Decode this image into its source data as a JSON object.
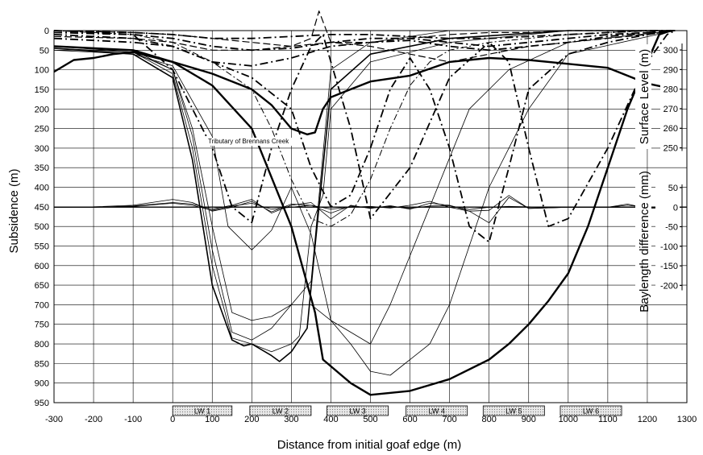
{
  "chart_data": {
    "type": "line",
    "title": "",
    "xlabel": "Distance from initial goaf edge (m)",
    "ylabel": "Subsidence (m)",
    "right_upper_label": "Surface Level (m)",
    "right_lower_label": "Baylength difference (mm)",
    "xlim": [
      -300,
      1300
    ],
    "ylim": [
      0,
      950
    ],
    "x_ticks": [
      -300,
      -200,
      -100,
      0,
      100,
      200,
      300,
      400,
      500,
      600,
      700,
      800,
      900,
      1000,
      1100,
      1200,
      1300
    ],
    "y_ticks": [
      0,
      50,
      100,
      150,
      200,
      250,
      300,
      350,
      400,
      450,
      500,
      550,
      600,
      650,
      700,
      750,
      800,
      850,
      900,
      950
    ],
    "surface_level_ticks": [
      300,
      290,
      280,
      270,
      260,
      250
    ],
    "baylength_ticks": [
      50,
      0,
      -50,
      -100,
      -150,
      -200
    ],
    "grid": true,
    "annotation": "Tributary of Brennans Creek",
    "longwalls": [
      {
        "label": "LW 1",
        "x0": 0,
        "x1": 150
      },
      {
        "label": "LW 2",
        "x0": 195,
        "x1": 350
      },
      {
        "label": "LW 3",
        "x0": 390,
        "x1": 545
      },
      {
        "label": "LW 4",
        "x0": 590,
        "x1": 745
      },
      {
        "label": "LW 5",
        "x0": 785,
        "x1": 940
      },
      {
        "label": "LW 6",
        "x0": 980,
        "x1": 1135
      }
    ],
    "series": [
      {
        "style": "solid-thin",
        "x": [
          -300,
          -100,
          0,
          50,
          100,
          150,
          200,
          250,
          300,
          350,
          400,
          500,
          700,
          1000,
          1270
        ],
        "y": [
          40,
          50,
          100,
          270,
          560,
          770,
          790,
          760,
          700,
          640,
          100,
          30,
          0,
          0,
          0
        ]
      },
      {
        "style": "solid-thin",
        "x": [
          -300,
          -100,
          0,
          50,
          100,
          150,
          200,
          250,
          300,
          320,
          350,
          380,
          400,
          500,
          700,
          1000,
          1270
        ],
        "y": [
          40,
          55,
          110,
          300,
          600,
          785,
          800,
          820,
          800,
          780,
          500,
          420,
          200,
          80,
          30,
          0,
          0
        ]
      },
      {
        "style": "solid-medium",
        "x": [
          -300,
          -100,
          0,
          50,
          100,
          150,
          180,
          200,
          250,
          270,
          300,
          340,
          360,
          400,
          500,
          700,
          1000,
          1270
        ],
        "y": [
          45,
          60,
          120,
          330,
          650,
          790,
          805,
          800,
          830,
          845,
          820,
          760,
          550,
          150,
          60,
          20,
          0,
          0
        ]
      },
      {
        "style": "solid-thin",
        "x": [
          -300,
          -100,
          0,
          50,
          100,
          150,
          200,
          250,
          300,
          350,
          400,
          450,
          500,
          550,
          650,
          750,
          850,
          1000,
          1270
        ],
        "y": [
          45,
          55,
          100,
          250,
          500,
          720,
          740,
          730,
          700,
          700,
          740,
          770,
          800,
          700,
          450,
          200,
          100,
          30,
          0
        ]
      },
      {
        "style": "solid-thin",
        "x": [
          -300,
          -100,
          0,
          100,
          140,
          200,
          250,
          300,
          350,
          400,
          450,
          500,
          550,
          650,
          700,
          800,
          900,
          1000,
          1270
        ],
        "y": [
          50,
          60,
          90,
          270,
          500,
          560,
          510,
          400,
          520,
          740,
          800,
          870,
          880,
          800,
          700,
          400,
          200,
          60,
          0
        ]
      },
      {
        "style": "solid-thick",
        "x": [
          -300,
          -100,
          0,
          100,
          200,
          300,
          360,
          380,
          450,
          500,
          600,
          700,
          800,
          850,
          900,
          950,
          1000,
          1050,
          1100,
          1150,
          1200,
          1230,
          1260
        ],
        "y": [
          40,
          50,
          80,
          140,
          250,
          500,
          720,
          840,
          900,
          930,
          920,
          890,
          840,
          800,
          750,
          690,
          620,
          500,
          350,
          200,
          80,
          10,
          0
        ]
      },
      {
        "style": "solid-thick",
        "x": [
          -300,
          -250,
          -200,
          -150,
          -100,
          0,
          100,
          200,
          250,
          300,
          340,
          360,
          380,
          400,
          450,
          500,
          600,
          700,
          800,
          900,
          1000,
          1100,
          1200,
          1270
        ],
        "y": [
          105,
          75,
          70,
          60,
          55,
          80,
          110,
          150,
          190,
          250,
          265,
          260,
          200,
          170,
          150,
          130,
          115,
          80,
          70,
          75,
          85,
          95,
          135,
          150
        ]
      },
      {
        "style": "dash-dot",
        "x": [
          -300,
          -100,
          0,
          100,
          150,
          200,
          250,
          300,
          350,
          380,
          400,
          450,
          500,
          600,
          700,
          800,
          850,
          900,
          950,
          1000,
          1100,
          1200,
          1250,
          1270
        ],
        "y": [
          5,
          10,
          100,
          300,
          450,
          490,
          300,
          150,
          40,
          10,
          80,
          250,
          480,
          350,
          120,
          30,
          80,
          300,
          500,
          480,
          300,
          80,
          10,
          0
        ]
      },
      {
        "style": "dash-dot",
        "x": [
          -300,
          -100,
          0,
          100,
          200,
          300,
          350,
          400,
          450,
          500,
          550,
          600,
          650,
          700,
          750,
          800,
          850,
          900,
          1000,
          1100,
          1200,
          1270
        ],
        "y": [
          10,
          20,
          40,
          80,
          120,
          200,
          350,
          450,
          420,
          300,
          150,
          70,
          150,
          300,
          500,
          540,
          350,
          150,
          60,
          30,
          10,
          0
        ]
      },
      {
        "style": "dash-dot-light",
        "x": [
          -300,
          -100,
          0,
          100,
          200,
          250,
          300,
          350,
          400,
          450,
          500,
          550,
          600,
          650,
          700,
          750,
          800,
          900,
          1000,
          1100,
          1200,
          1270
        ],
        "y": [
          0,
          10,
          30,
          80,
          150,
          250,
          380,
          480,
          500,
          470,
          380,
          250,
          140,
          80,
          50,
          40,
          30,
          20,
          10,
          5,
          0,
          0
        ]
      },
      {
        "style": "dash-long",
        "x": [
          -300,
          -100,
          0,
          100,
          200,
          300,
          400,
          500,
          600,
          700,
          800,
          900,
          1000,
          1100,
          1200,
          1270
        ],
        "y": [
          15,
          20,
          30,
          50,
          50,
          40,
          30,
          40,
          60,
          80,
          60,
          40,
          30,
          20,
          10,
          0
        ]
      },
      {
        "style": "dash-dot",
        "x": [
          -300,
          -100,
          0,
          100,
          200,
          300,
          400,
          500,
          600,
          700,
          800,
          900,
          1000,
          1100,
          1200,
          1270
        ],
        "y": [
          0,
          5,
          10,
          20,
          20,
          15,
          10,
          10,
          15,
          20,
          20,
          15,
          10,
          5,
          0,
          0
        ]
      },
      {
        "style": "dash-dot",
        "x": [
          -300,
          -100,
          0,
          100,
          200,
          300,
          400,
          500,
          600,
          700,
          800,
          900,
          1000,
          1100,
          1200,
          1270
        ],
        "y": [
          0,
          10,
          20,
          40,
          50,
          45,
          30,
          20,
          20,
          30,
          40,
          30,
          20,
          10,
          5,
          0
        ]
      },
      {
        "style": "dash-dot",
        "x": [
          -300,
          -100,
          0,
          100,
          200,
          300,
          400,
          500,
          600,
          700,
          800,
          900,
          1000,
          1100,
          1200,
          1270
        ],
        "y": [
          20,
          30,
          40,
          80,
          90,
          70,
          40,
          30,
          25,
          40,
          50,
          40,
          30,
          15,
          5,
          0
        ]
      },
      {
        "style": "dash-long",
        "x": [
          -300,
          -100,
          0,
          100,
          200,
          300,
          350,
          370,
          400,
          500,
          600,
          700,
          800,
          900,
          1000,
          1100,
          1200,
          1270
        ],
        "y": [
          0,
          5,
          10,
          20,
          30,
          40,
          20,
          -50,
          30,
          30,
          20,
          10,
          5,
          5,
          0,
          0,
          0,
          0
        ]
      }
    ],
    "baylength_series": [
      {
        "x": [
          -300,
          -200,
          -100,
          0,
          50,
          100,
          150,
          200,
          250,
          300,
          350,
          400,
          450,
          500,
          550,
          600,
          650,
          700,
          750,
          800,
          850,
          900,
          950,
          1000,
          1050,
          1100,
          1150,
          1200,
          1270
        ],
        "y": [
          0,
          1,
          5,
          20,
          12,
          -10,
          0,
          15,
          -12,
          8,
          5,
          -15,
          3,
          -2,
          2,
          -3,
          3,
          4,
          -6,
          0,
          2,
          1,
          -1,
          0,
          0,
          0,
          0,
          0,
          0
        ]
      },
      {
        "x": [
          -300,
          -200,
          -100,
          0,
          50,
          100,
          150,
          200,
          250,
          300,
          350,
          400,
          450,
          500,
          550,
          600,
          650,
          700,
          750,
          800,
          850,
          900,
          1000,
          1100,
          1150,
          1200,
          1270
        ],
        "y": [
          0,
          0,
          3,
          12,
          8,
          -5,
          5,
          20,
          -15,
          5,
          12,
          -30,
          5,
          -3,
          4,
          -5,
          10,
          5,
          -10,
          -8,
          30,
          -3,
          0,
          0,
          8,
          -3,
          0
        ]
      },
      {
        "x": [
          -300,
          -200,
          -100,
          0,
          50,
          100,
          150,
          200,
          250,
          300,
          350,
          400,
          450,
          500,
          550,
          600,
          650,
          700,
          750,
          800,
          850,
          900,
          1000,
          1100,
          1150,
          1200,
          1270
        ],
        "y": [
          0,
          0,
          2,
          10,
          5,
          -8,
          3,
          10,
          -5,
          0,
          5,
          -5,
          0,
          2,
          -2,
          5,
          15,
          0,
          -10,
          -40,
          25,
          -3,
          0,
          0,
          5,
          0,
          0
        ]
      }
    ]
  }
}
